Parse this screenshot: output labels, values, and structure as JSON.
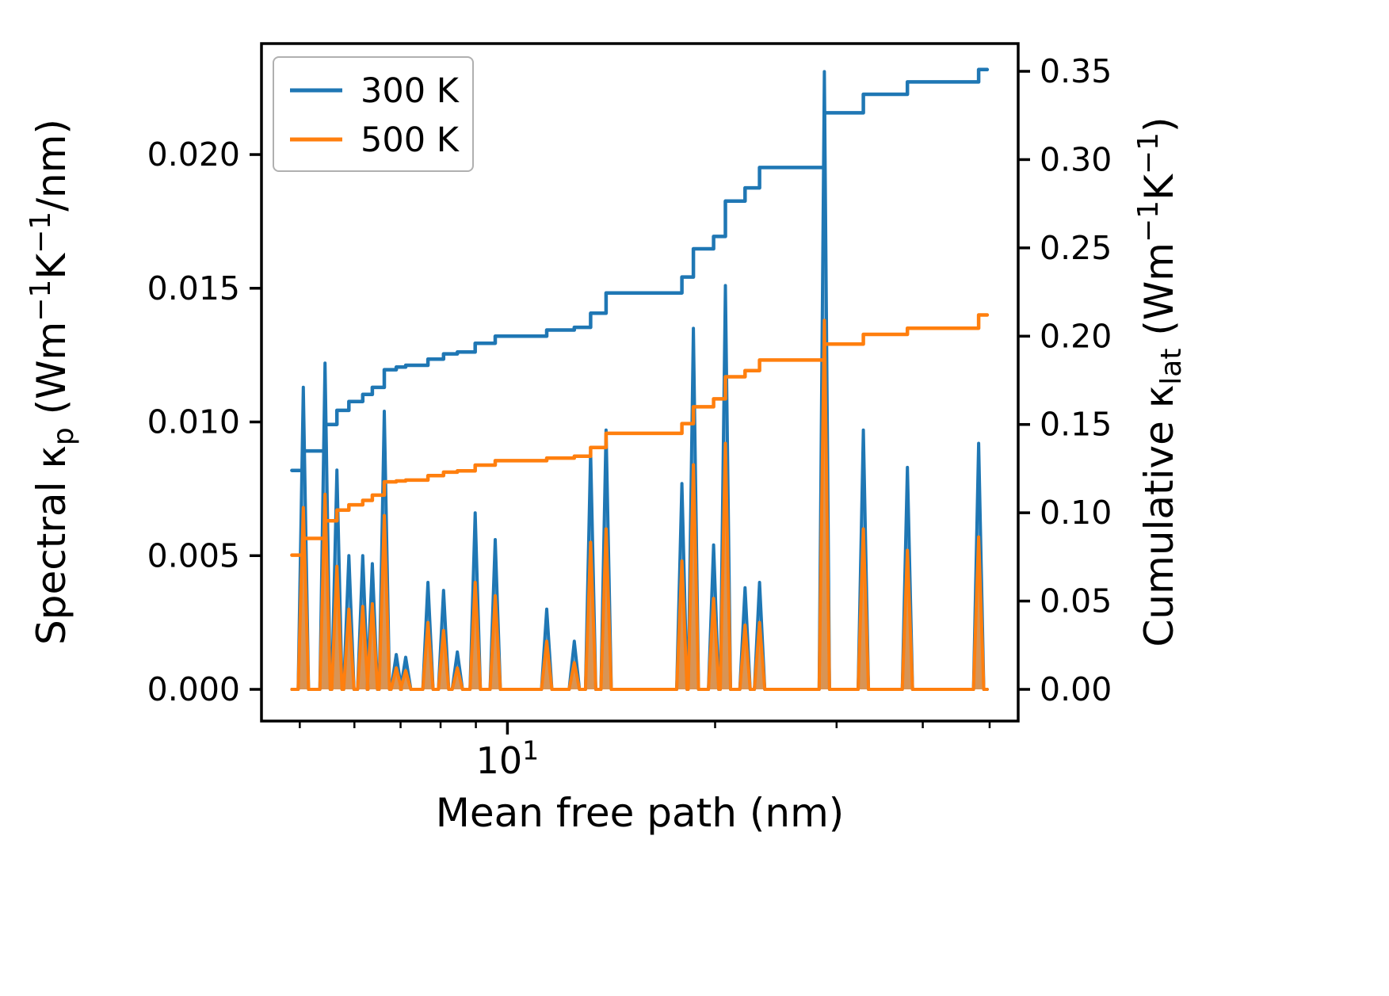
{
  "chart_data": {
    "type": "line",
    "title": "",
    "xlabel": "Mean free path (nm)",
    "xscale": "log",
    "xlim": [
      4.4,
      55
    ],
    "x_data_range": [
      4.87,
      49.6
    ],
    "x_major_ticks": [
      {
        "value": 10,
        "segments": [
          {
            "t": "10",
            "s": "n"
          },
          {
            "t": "1",
            "s": "sup"
          }
        ]
      }
    ],
    "x_minor_ticks": [
      5,
      6,
      7,
      8,
      9,
      20,
      30,
      40,
      50
    ],
    "left_axis": {
      "label_segments": [
        {
          "t": "Spectral κ",
          "s": "n"
        },
        {
          "t": "p",
          "s": "sub"
        },
        {
          "t": " (Wm",
          "s": "n"
        },
        {
          "t": "−1",
          "s": "sup"
        },
        {
          "t": "K",
          "s": "n"
        },
        {
          "t": "−1",
          "s": "sup"
        },
        {
          "t": "/nm)",
          "s": "n"
        }
      ],
      "ticks": [
        0.0,
        0.005,
        0.01,
        0.015,
        0.02
      ],
      "tick_labels": [
        "0.000",
        "0.005",
        "0.010",
        "0.015",
        "0.020"
      ],
      "lim": [
        -0.001185,
        0.02415
      ]
    },
    "right_axis": {
      "label_segments": [
        {
          "t": "Cumulative κ",
          "s": "n"
        },
        {
          "t": "lat",
          "s": "sub"
        },
        {
          "t": " (Wm",
          "s": "n"
        },
        {
          "t": "−1",
          "s": "sup"
        },
        {
          "t": "K",
          "s": "n"
        },
        {
          "t": "−1",
          "s": "sup"
        },
        {
          "t": ")",
          "s": "n"
        }
      ],
      "ticks": [
        0.0,
        0.05,
        0.1,
        0.15,
        0.2,
        0.25,
        0.3,
        0.35
      ],
      "tick_labels": [
        "0.00",
        "0.05",
        "0.10",
        "0.15",
        "0.20",
        "0.25",
        "0.30",
        "0.35"
      ],
      "lim": [
        -0.01795,
        0.3657
      ]
    },
    "legend": {
      "position": "upper-left",
      "entries": [
        {
          "label": "300 K",
          "color": "#1f77b4"
        },
        {
          "label": "500 K",
          "color": "#ff7f0e"
        }
      ]
    },
    "peak_halfwidth_decades": 0.0075,
    "peak_x": [
      5.06,
      5.44,
      5.66,
      5.89,
      6.17,
      6.37,
      6.63,
      6.9,
      7.12,
      7.67,
      8.08,
      8.46,
      8.98,
      9.6,
      11.4,
      12.5,
      13.2,
      13.9,
      17.9,
      18.6,
      19.9,
      20.7,
      22.1,
      23.2,
      28.8,
      32.8,
      38.0,
      48.2
    ],
    "series": [
      {
        "name": "300 K",
        "color": "#1f77b4",
        "spectral_peaks": [
          0.0113,
          0.0122,
          0.0082,
          0.005,
          0.005,
          0.0047,
          0.0104,
          0.0013,
          0.0012,
          0.004,
          0.0037,
          0.0014,
          0.0066,
          0.0056,
          0.003,
          0.0018,
          0.0089,
          0.0097,
          0.0077,
          0.0135,
          0.0054,
          0.0151,
          0.0038,
          0.004,
          0.0231,
          0.0097,
          0.0083,
          0.0092
        ],
        "cumulative_start": 0.124,
        "cumulative": [
          0.135,
          0.15,
          0.158,
          0.163,
          0.167,
          0.171,
          0.181,
          0.1825,
          0.1835,
          0.187,
          0.19,
          0.191,
          0.196,
          0.2,
          0.2035,
          0.205,
          0.213,
          0.2245,
          0.2335,
          0.2495,
          0.2565,
          0.2765,
          0.284,
          0.2955,
          0.3265,
          0.337,
          0.344,
          0.351
        ]
      },
      {
        "name": "500 K",
        "color": "#ff7f0e",
        "spectral_peaks": [
          0.0068,
          0.0073,
          0.0046,
          0.003,
          0.0031,
          0.0032,
          0.0065,
          0.0008,
          0.0007,
          0.0025,
          0.0022,
          0.0008,
          0.004,
          0.0035,
          0.0018,
          0.001,
          0.0055,
          0.006,
          0.0048,
          0.0084,
          0.0034,
          0.0092,
          0.0024,
          0.0025,
          0.0138,
          0.006,
          0.0052,
          0.0057
        ],
        "cumulative_start": 0.076,
        "cumulative": [
          0.0855,
          0.0955,
          0.1015,
          0.1045,
          0.107,
          0.11,
          0.1175,
          0.118,
          0.1185,
          0.121,
          0.123,
          0.1237,
          0.127,
          0.1295,
          0.131,
          0.132,
          0.137,
          0.145,
          0.1505,
          0.16,
          0.1645,
          0.177,
          0.1805,
          0.1865,
          0.1955,
          0.201,
          0.2045,
          0.212
        ]
      }
    ]
  }
}
